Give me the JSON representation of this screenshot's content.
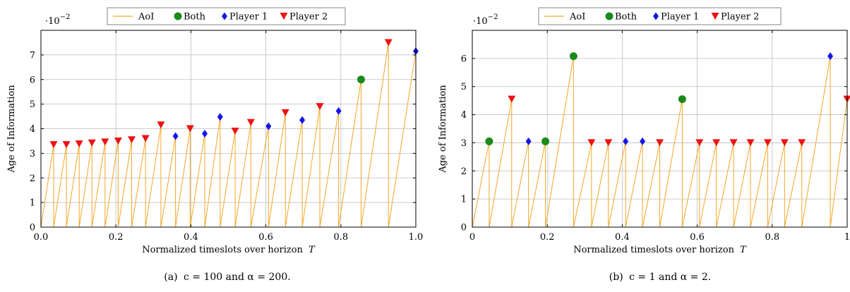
{
  "legend": {
    "aoi": "AoI",
    "both": "Both",
    "p1": "Player 1",
    "p2": "Player 2"
  },
  "colors": {
    "aoi": "#f5a623",
    "both": "#1a8a1a",
    "p1": "#1515e6",
    "p2": "#ee1111",
    "grid": "#bdbdbd"
  },
  "chart_data": [
    {
      "type": "line",
      "caption_prefix": "(a) ",
      "caption_math": "c = 100 and α = 200.",
      "xlabel": "Normalized timeslots over horizon",
      "xlabel_var": "T",
      "ylabel": "Age of Information",
      "y_scale_label": "·10",
      "y_scale_exp": "−2",
      "xlim": [
        0,
        1
      ],
      "ylim": [
        0,
        8
      ],
      "xticks": [
        0,
        0.2,
        0.4,
        0.6,
        0.8,
        1
      ],
      "xtick_labels": [
        "0.0",
        "0.2",
        "0.4",
        "0.6",
        "0.8",
        "1.0"
      ],
      "yticks": [
        0,
        1,
        2,
        3,
        4,
        5,
        6,
        7
      ],
      "ytick_labels": [
        "0",
        "1",
        "2",
        "3",
        "4",
        "5",
        "6",
        "7"
      ],
      "events": [
        {
          "x": 0.034,
          "y": 3.35,
          "type": "p2"
        },
        {
          "x": 0.068,
          "y": 3.35,
          "type": "p2"
        },
        {
          "x": 0.102,
          "y": 3.38,
          "type": "p2"
        },
        {
          "x": 0.136,
          "y": 3.42,
          "type": "p2"
        },
        {
          "x": 0.171,
          "y": 3.46,
          "type": "p2"
        },
        {
          "x": 0.206,
          "y": 3.5,
          "type": "p2"
        },
        {
          "x": 0.242,
          "y": 3.55,
          "type": "p2"
        },
        {
          "x": 0.279,
          "y": 3.6,
          "type": "p2"
        },
        {
          "x": 0.32,
          "y": 4.15,
          "type": "p2"
        },
        {
          "x": 0.359,
          "y": 3.7,
          "type": "p1"
        },
        {
          "x": 0.398,
          "y": 4.0,
          "type": "p2"
        },
        {
          "x": 0.437,
          "y": 3.8,
          "type": "p1"
        },
        {
          "x": 0.478,
          "y": 4.48,
          "type": "p1"
        },
        {
          "x": 0.518,
          "y": 3.9,
          "type": "p2"
        },
        {
          "x": 0.56,
          "y": 4.25,
          "type": "p2"
        },
        {
          "x": 0.607,
          "y": 4.1,
          "type": "p1"
        },
        {
          "x": 0.652,
          "y": 4.65,
          "type": "p2"
        },
        {
          "x": 0.697,
          "y": 4.35,
          "type": "p1"
        },
        {
          "x": 0.744,
          "y": 4.9,
          "type": "p2"
        },
        {
          "x": 0.794,
          "y": 4.72,
          "type": "p1"
        },
        {
          "x": 0.854,
          "y": 6.0,
          "type": "both"
        },
        {
          "x": 0.927,
          "y": 7.5,
          "type": "p2"
        },
        {
          "x": 1.0,
          "y": 7.15,
          "type": "p1"
        }
      ]
    },
    {
      "type": "line",
      "caption_prefix": "(b) ",
      "caption_math": "c = 1 and α = 2.",
      "xlabel": "Normalized timeslots over horizon",
      "xlabel_var": "T",
      "ylabel": "Age of Information",
      "y_scale_label": "·10",
      "y_scale_exp": "−2",
      "xlim": [
        0,
        1
      ],
      "ylim": [
        0,
        7
      ],
      "xticks": [
        0,
        0.2,
        0.4,
        0.6,
        0.8,
        1
      ],
      "xtick_labels": [
        "0",
        "0.2",
        "0.4",
        "0.6",
        "0.8",
        "1"
      ],
      "yticks": [
        0,
        1,
        2,
        3,
        4,
        5,
        6
      ],
      "ytick_labels": [
        "0",
        "1",
        "2",
        "3",
        "4",
        "5",
        "6"
      ],
      "events": [
        {
          "x": 0.045,
          "y": 3.05,
          "type": "both"
        },
        {
          "x": 0.105,
          "y": 4.55,
          "type": "p2"
        },
        {
          "x": 0.15,
          "y": 3.05,
          "type": "p1"
        },
        {
          "x": 0.195,
          "y": 3.05,
          "type": "both"
        },
        {
          "x": 0.27,
          "y": 6.08,
          "type": "both"
        },
        {
          "x": 0.318,
          "y": 3.0,
          "type": "p2"
        },
        {
          "x": 0.363,
          "y": 3.0,
          "type": "p2"
        },
        {
          "x": 0.409,
          "y": 3.05,
          "type": "p1"
        },
        {
          "x": 0.454,
          "y": 3.05,
          "type": "p1"
        },
        {
          "x": 0.5,
          "y": 3.0,
          "type": "p2"
        },
        {
          "x": 0.56,
          "y": 4.55,
          "type": "both"
        },
        {
          "x": 0.606,
          "y": 3.0,
          "type": "p2"
        },
        {
          "x": 0.651,
          "y": 3.0,
          "type": "p2"
        },
        {
          "x": 0.697,
          "y": 3.0,
          "type": "p2"
        },
        {
          "x": 0.742,
          "y": 3.0,
          "type": "p2"
        },
        {
          "x": 0.788,
          "y": 3.0,
          "type": "p2"
        },
        {
          "x": 0.833,
          "y": 3.0,
          "type": "p2"
        },
        {
          "x": 0.879,
          "y": 3.0,
          "type": "p2"
        },
        {
          "x": 0.955,
          "y": 6.08,
          "type": "p1"
        },
        {
          "x": 1.0,
          "y": 4.55,
          "type": "p2"
        }
      ]
    }
  ]
}
